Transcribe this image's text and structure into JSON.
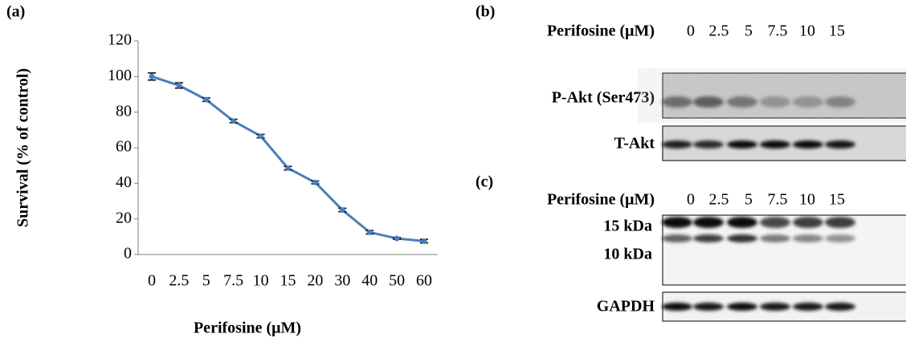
{
  "panel_labels": [
    "(a)",
    "(b)",
    "(c)"
  ],
  "chart_data": {
    "type": "line",
    "x_label": "Perifosine (μM)",
    "y_label": "Survival (% of control)",
    "categories": [
      "0",
      "2.5",
      "5",
      "7.5",
      "10",
      "15",
      "20",
      "30",
      "40",
      "50",
      "60"
    ],
    "series": [
      {
        "color": "#4a7ebb",
        "values": [
          100,
          95,
          87,
          75,
          66.5,
          48.5,
          40.5,
          25,
          12.5,
          9,
          7.5
        ],
        "errors": [
          2,
          1.5,
          1,
          1,
          1,
          1,
          0.8,
          1,
          1,
          0.5,
          1
        ]
      }
    ],
    "ylim": [
      0,
      120
    ],
    "yticks": [
      0,
      20,
      40,
      60,
      80,
      100,
      120
    ],
    "grid": false
  },
  "blot_b": {
    "header": "Perifosine (μM)",
    "lanes": [
      "0",
      "2.5",
      "5",
      "7.5",
      "10",
      "15"
    ],
    "rows": [
      "P-Akt (Ser473)",
      "T-Akt"
    ]
  },
  "blot_c": {
    "header": "Perifosine (μM)",
    "lanes": [
      "0",
      "2.5",
      "5",
      "7.5",
      "10",
      "15"
    ],
    "markers": [
      "15 kDa",
      "10 kDa"
    ],
    "rows": [
      "GAPDH"
    ]
  }
}
